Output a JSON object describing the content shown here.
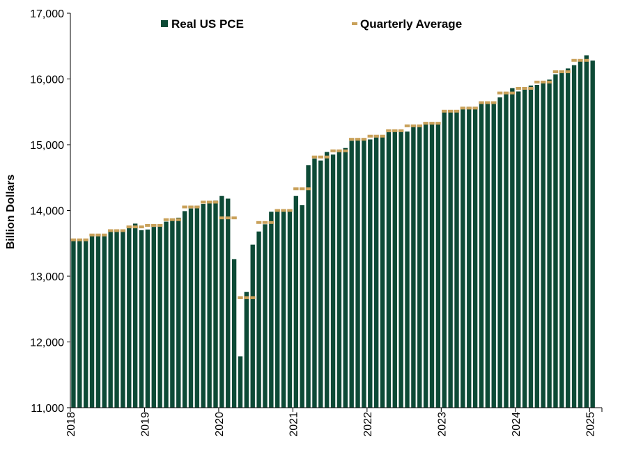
{
  "chart_data": {
    "type": "bar",
    "ylabel": "Billion Dollars",
    "ylim": [
      11000,
      17000
    ],
    "yticks": [
      11000,
      12000,
      13000,
      14000,
      15000,
      16000,
      17000
    ],
    "ytick_labels": [
      "11,000",
      "12,000",
      "13,000",
      "14,000",
      "15,000",
      "16,000",
      "17,000"
    ],
    "xtick_labels": [
      "2018",
      "2019",
      "2020",
      "2021",
      "2022",
      "2023",
      "2024",
      "2025"
    ],
    "legend_position": "top",
    "grid": false,
    "colors": {
      "bars": "#0d4a36",
      "quarterly": "#c9a15a"
    },
    "series": [
      {
        "name": "Real US PCE",
        "type": "bar",
        "values": [
          13560,
          13540,
          13560,
          13610,
          13640,
          13630,
          13690,
          13700,
          13690,
          13750,
          13800,
          13700,
          13710,
          13750,
          13780,
          13830,
          13860,
          13890,
          13990,
          14030,
          14040,
          14100,
          14130,
          14150,
          14220,
          14180,
          13260,
          11780,
          12760,
          13480,
          13680,
          13790,
          13980,
          14010,
          13990,
          14010,
          14220,
          14080,
          14690,
          14790,
          14760,
          14890,
          14850,
          14920,
          14950,
          15060,
          15090,
          15100,
          15080,
          15110,
          15140,
          15190,
          15230,
          15220,
          15200,
          15270,
          15290,
          15330,
          15320,
          15330,
          15520,
          15500,
          15510,
          15560,
          15560,
          15550,
          15640,
          15640,
          15640,
          15720,
          15780,
          15860,
          15810,
          15860,
          15900,
          15910,
          15950,
          15990,
          16070,
          16100,
          16160,
          16210,
          16280,
          16360,
          16280
        ]
      },
      {
        "name": "Quarterly Average",
        "type": "dash",
        "values": [
          13553,
          13627,
          13693,
          13750,
          13773,
          13860,
          14053,
          14127,
          13887,
          12673,
          13817,
          14000,
          14330,
          14813,
          14907,
          15083,
          15130,
          15213,
          15287,
          15327,
          15510,
          15557,
          15640,
          15787,
          15857,
          15953,
          16110,
          16283
        ]
      }
    ]
  }
}
